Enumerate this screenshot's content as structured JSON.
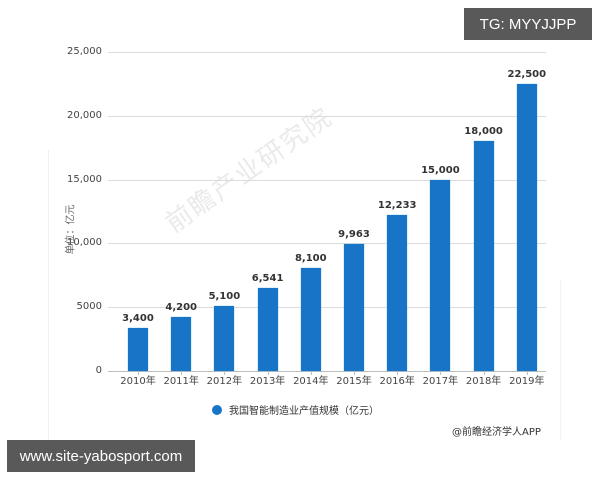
{
  "chart_data": {
    "type": "bar",
    "title": "",
    "xlabel": "",
    "ylabel": "单位：亿元",
    "categories": [
      "2010年",
      "2011年",
      "2012年",
      "2013年",
      "2014年",
      "2015年",
      "2016年",
      "2017年",
      "2018年",
      "2019年"
    ],
    "values": [
      3400,
      4200,
      5100,
      6541,
      8100,
      9963,
      12233,
      15000,
      18000,
      22500
    ],
    "value_labels": [
      "3,400",
      "4,200",
      "5,100",
      "6,541",
      "8,100",
      "9,963",
      "12,233",
      "15,000",
      "18,000",
      "22,500"
    ],
    "series": [
      {
        "name": "我国智能制造业产值规模（亿元）",
        "color": "#1874c6",
        "values": [
          3400,
          4200,
          5100,
          6541,
          8100,
          9963,
          12233,
          15000,
          18000,
          22500
        ]
      }
    ],
    "yticks": [
      "0",
      "5000",
      "10,000",
      "15,000",
      "20,000",
      "25,000"
    ],
    "ylim": [
      0,
      25000
    ],
    "grid": true,
    "legend_position": "bottom"
  },
  "legend": {
    "label": "我国智能制造业产值规模（亿元）"
  },
  "source": "@前瞻经济学人APP",
  "watermark": "前瞻产业研究院",
  "overlays": {
    "tg_badge": "TG: MYYJJPP",
    "site_badge": "www.site-yabosport.com"
  }
}
